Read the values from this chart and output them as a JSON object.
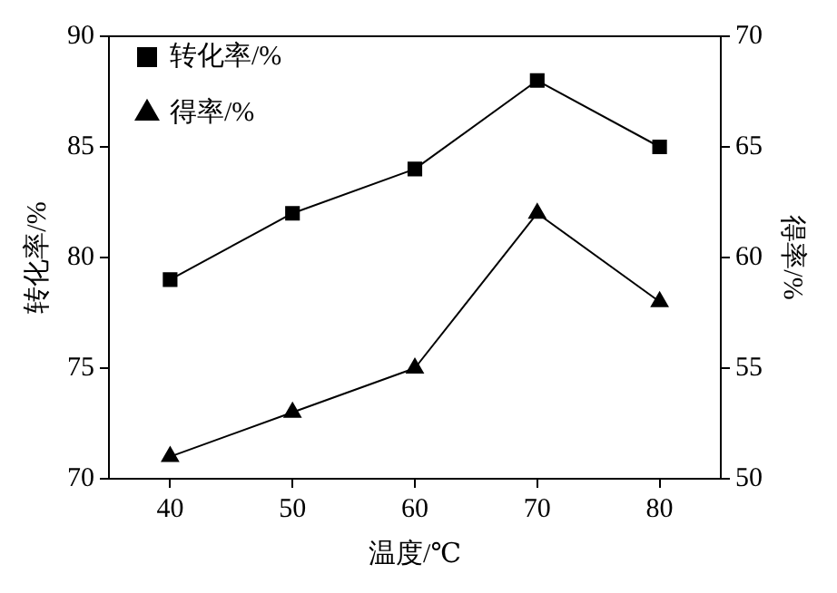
{
  "chart_data": {
    "type": "line",
    "xlabel": "温度/℃",
    "ylabel": "转化率/%",
    "y2label": "得率/%",
    "x": [
      40,
      50,
      60,
      70,
      80
    ],
    "series": [
      {
        "name": "转化率/%",
        "color": "#000000",
        "marker": "square",
        "values": [
          79,
          82,
          84,
          88,
          85
        ]
      },
      {
        "name": "得率/%",
        "color": "#000000",
        "marker": "triangle",
        "axis": "y2",
        "values": [
          51,
          53,
          55,
          62,
          58
        ]
      }
    ],
    "xlim": [
      35,
      85
    ],
    "xticks": [
      40,
      50,
      60,
      70,
      80
    ],
    "ylim": [
      70,
      90
    ],
    "yticks": [
      70,
      75,
      80,
      85,
      90
    ],
    "y2lim": [
      50,
      70
    ],
    "y2ticks": [
      50,
      55,
      60,
      65,
      70
    ],
    "grid": false,
    "legend": "top left",
    "line_style": "solid"
  }
}
